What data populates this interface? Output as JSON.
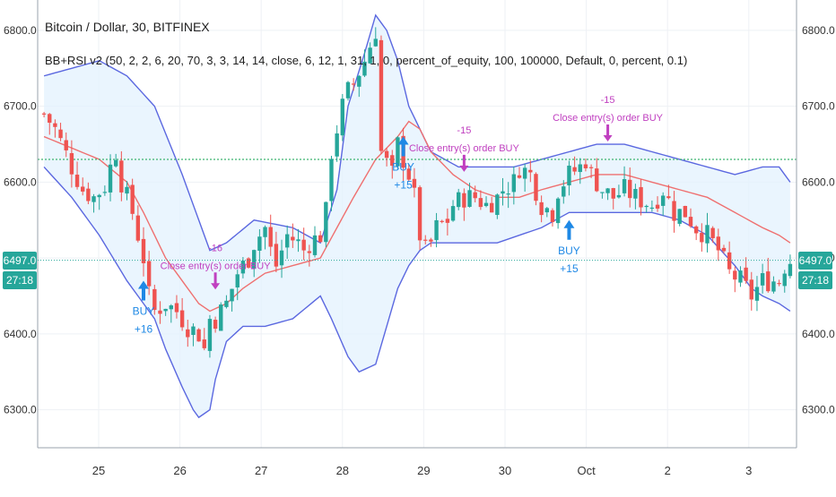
{
  "header": {
    "symbol_title": "Bitcoin / Dollar, 30, BITFINEX",
    "study_line": "BB+RSI v2 (50, 2, 2, 6, 20, 70, 3, 3, 14, 14, close, 6, 12, 1, 31, 1, 0, percent_of_equity, 100, 100000, Default, 0, percent, 0.1)"
  },
  "price_label": {
    "price": "6497.0",
    "countdown": "27:18",
    "color": "#26a69a"
  },
  "colors": {
    "up": "#26a69a",
    "down": "#ef5350",
    "bb_band": "#5b68e0",
    "bb_basis": "#ef7070",
    "bb_fill": "#e3f2fd",
    "signal": "#c040c0",
    "buy": "#1e88e5",
    "hline": "#3cb371"
  },
  "chart_data": {
    "type": "candlestick",
    "title": "Bitcoin / Dollar, 30, BITFINEX",
    "x_labels": [
      "25",
      "26",
      "27",
      "28",
      "29",
      "30",
      "Oct",
      "2",
      "3"
    ],
    "y_ticks": [
      6300,
      6400,
      6500,
      6600,
      6700,
      6800
    ],
    "y_tick_labels": [
      "6300.0",
      "6400.0",
      "6500.0",
      "6600.0",
      "6700.0",
      "6800.0"
    ],
    "ylim": [
      6250,
      6840
    ],
    "grid": true,
    "last_price": 6497.0,
    "horizontal_level": 6630,
    "close_path": [
      [
        0,
        6690
      ],
      [
        2,
        6670
      ],
      [
        5,
        6620
      ],
      [
        7,
        6590
      ],
      [
        9,
        6580
      ],
      [
        11,
        6595
      ],
      [
        12,
        6620
      ],
      [
        13,
        6640
      ],
      [
        14,
        6600
      ],
      [
        16,
        6560
      ],
      [
        18,
        6500
      ],
      [
        19,
        6450
      ],
      [
        20,
        6430
      ],
      [
        22,
        6440
      ],
      [
        24,
        6430
      ],
      [
        25,
        6420
      ],
      [
        26,
        6410
      ],
      [
        27,
        6405
      ],
      [
        28,
        6400
      ],
      [
        29,
        6380
      ],
      [
        30,
        6420
      ],
      [
        31,
        6420
      ],
      [
        33,
        6440
      ],
      [
        35,
        6480
      ],
      [
        37,
        6500
      ],
      [
        38,
        6520
      ],
      [
        40,
        6540
      ],
      [
        41,
        6510
      ],
      [
        42,
        6490
      ],
      [
        44,
        6530
      ],
      [
        46,
        6520
      ],
      [
        47,
        6510
      ],
      [
        48,
        6520
      ],
      [
        50,
        6530
      ],
      [
        51,
        6560
      ],
      [
        52,
        6640
      ],
      [
        54,
        6700
      ],
      [
        55,
        6720
      ],
      [
        56,
        6730
      ],
      [
        58,
        6760
      ],
      [
        60,
        6800
      ],
      [
        61,
        6640
      ],
      [
        63,
        6610
      ],
      [
        64,
        6650
      ],
      [
        65,
        6630
      ],
      [
        66,
        6610
      ],
      [
        67,
        6580
      ],
      [
        68,
        6530
      ],
      [
        69,
        6510
      ],
      [
        70,
        6520
      ],
      [
        71,
        6540
      ],
      [
        73,
        6550
      ],
      [
        74,
        6570
      ],
      [
        76,
        6580
      ],
      [
        78,
        6580
      ],
      [
        80,
        6570
      ],
      [
        82,
        6580
      ],
      [
        83,
        6590
      ],
      [
        85,
        6600
      ],
      [
        86,
        6620
      ],
      [
        88,
        6610
      ],
      [
        90,
        6570
      ],
      [
        92,
        6560
      ],
      [
        93,
        6590
      ],
      [
        95,
        6610
      ],
      [
        97,
        6620
      ],
      [
        98,
        6630
      ],
      [
        99,
        6610
      ],
      [
        101,
        6590
      ],
      [
        103,
        6580
      ],
      [
        105,
        6590
      ],
      [
        107,
        6580
      ],
      [
        110,
        6570
      ],
      [
        112,
        6590
      ],
      [
        114,
        6560
      ],
      [
        116,
        6560
      ],
      [
        118,
        6540
      ],
      [
        120,
        6530
      ],
      [
        122,
        6510
      ],
      [
        124,
        6480
      ],
      [
        126,
        6470
      ],
      [
        128,
        6450
      ],
      [
        130,
        6470
      ],
      [
        133,
        6470
      ],
      [
        134,
        6490
      ],
      [
        135,
        6497
      ]
    ],
    "series": [
      {
        "name": "BB upper",
        "points": [
          [
            0,
            6740
          ],
          [
            5,
            6750
          ],
          [
            10,
            6760
          ],
          [
            15,
            6740
          ],
          [
            20,
            6700
          ],
          [
            25,
            6610
          ],
          [
            28,
            6550
          ],
          [
            30,
            6510
          ],
          [
            33,
            6520
          ],
          [
            38,
            6550
          ],
          [
            45,
            6540
          ],
          [
            50,
            6520
          ],
          [
            53,
            6590
          ],
          [
            55,
            6700
          ],
          [
            58,
            6770
          ],
          [
            60,
            6820
          ],
          [
            62,
            6800
          ],
          [
            64,
            6760
          ],
          [
            66,
            6700
          ],
          [
            70,
            6640
          ],
          [
            75,
            6620
          ],
          [
            80,
            6620
          ],
          [
            85,
            6620
          ],
          [
            90,
            6630
          ],
          [
            95,
            6640
          ],
          [
            100,
            6650
          ],
          [
            105,
            6650
          ],
          [
            110,
            6640
          ],
          [
            115,
            6630
          ],
          [
            120,
            6620
          ],
          [
            125,
            6610
          ],
          [
            130,
            6620
          ],
          [
            133,
            6620
          ],
          [
            135,
            6600
          ]
        ]
      },
      {
        "name": "BB basis",
        "points": [
          [
            0,
            6660
          ],
          [
            5,
            6645
          ],
          [
            10,
            6630
          ],
          [
            15,
            6600
          ],
          [
            18,
            6560
          ],
          [
            20,
            6530
          ],
          [
            22,
            6500
          ],
          [
            25,
            6470
          ],
          [
            28,
            6440
          ],
          [
            30,
            6430
          ],
          [
            33,
            6440
          ],
          [
            36,
            6460
          ],
          [
            40,
            6480
          ],
          [
            45,
            6490
          ],
          [
            50,
            6500
          ],
          [
            53,
            6540
          ],
          [
            56,
            6580
          ],
          [
            60,
            6630
          ],
          [
            64,
            6660
          ],
          [
            66,
            6680
          ],
          [
            68,
            6670
          ],
          [
            70,
            6640
          ],
          [
            74,
            6610
          ],
          [
            78,
            6590
          ],
          [
            82,
            6580
          ],
          [
            86,
            6580
          ],
          [
            90,
            6590
          ],
          [
            95,
            6600
          ],
          [
            100,
            6610
          ],
          [
            105,
            6610
          ],
          [
            110,
            6600
          ],
          [
            115,
            6590
          ],
          [
            120,
            6580
          ],
          [
            125,
            6560
          ],
          [
            130,
            6540
          ],
          [
            133,
            6530
          ],
          [
            135,
            6520
          ]
        ]
      },
      {
        "name": "BB lower",
        "points": [
          [
            0,
            6620
          ],
          [
            5,
            6580
          ],
          [
            10,
            6530
          ],
          [
            15,
            6470
          ],
          [
            20,
            6420
          ],
          [
            22,
            6380
          ],
          [
            25,
            6330
          ],
          [
            27,
            6300
          ],
          [
            28,
            6290
          ],
          [
            30,
            6300
          ],
          [
            31,
            6340
          ],
          [
            33,
            6390
          ],
          [
            36,
            6410
          ],
          [
            40,
            6410
          ],
          [
            45,
            6420
          ],
          [
            50,
            6450
          ],
          [
            52,
            6420
          ],
          [
            55,
            6370
          ],
          [
            57,
            6350
          ],
          [
            60,
            6360
          ],
          [
            62,
            6410
          ],
          [
            64,
            6460
          ],
          [
            66,
            6490
          ],
          [
            68,
            6510
          ],
          [
            70,
            6520
          ],
          [
            74,
            6520
          ],
          [
            78,
            6520
          ],
          [
            82,
            6520
          ],
          [
            86,
            6530
          ],
          [
            90,
            6540
          ],
          [
            95,
            6560
          ],
          [
            100,
            6560
          ],
          [
            105,
            6560
          ],
          [
            110,
            6560
          ],
          [
            115,
            6550
          ],
          [
            120,
            6530
          ],
          [
            125,
            6490
          ],
          [
            128,
            6460
          ],
          [
            130,
            6450
          ],
          [
            133,
            6440
          ],
          [
            135,
            6430
          ]
        ]
      }
    ],
    "annotations": [
      {
        "label": "-16",
        "text": "Close entry(s) order BUY",
        "kind": "close",
        "bar": 31,
        "price": 6455
      },
      {
        "label": "BUY",
        "sub": "+16",
        "kind": "buy",
        "bar": 18,
        "price": 6470
      },
      {
        "label": "-15",
        "text": "Close entry(s) order BUY",
        "kind": "close",
        "bar": 76,
        "price": 6610
      },
      {
        "label": "BUY",
        "sub": "+15",
        "kind": "buy",
        "bar": 65,
        "price": 6660
      },
      {
        "label": "-15",
        "text": "Close entry(s) order BUY",
        "kind": "close",
        "bar": 102,
        "price": 6650
      },
      {
        "label": "BUY",
        "sub": "+15",
        "kind": "buy",
        "bar": 95,
        "price": 6550
      }
    ]
  }
}
